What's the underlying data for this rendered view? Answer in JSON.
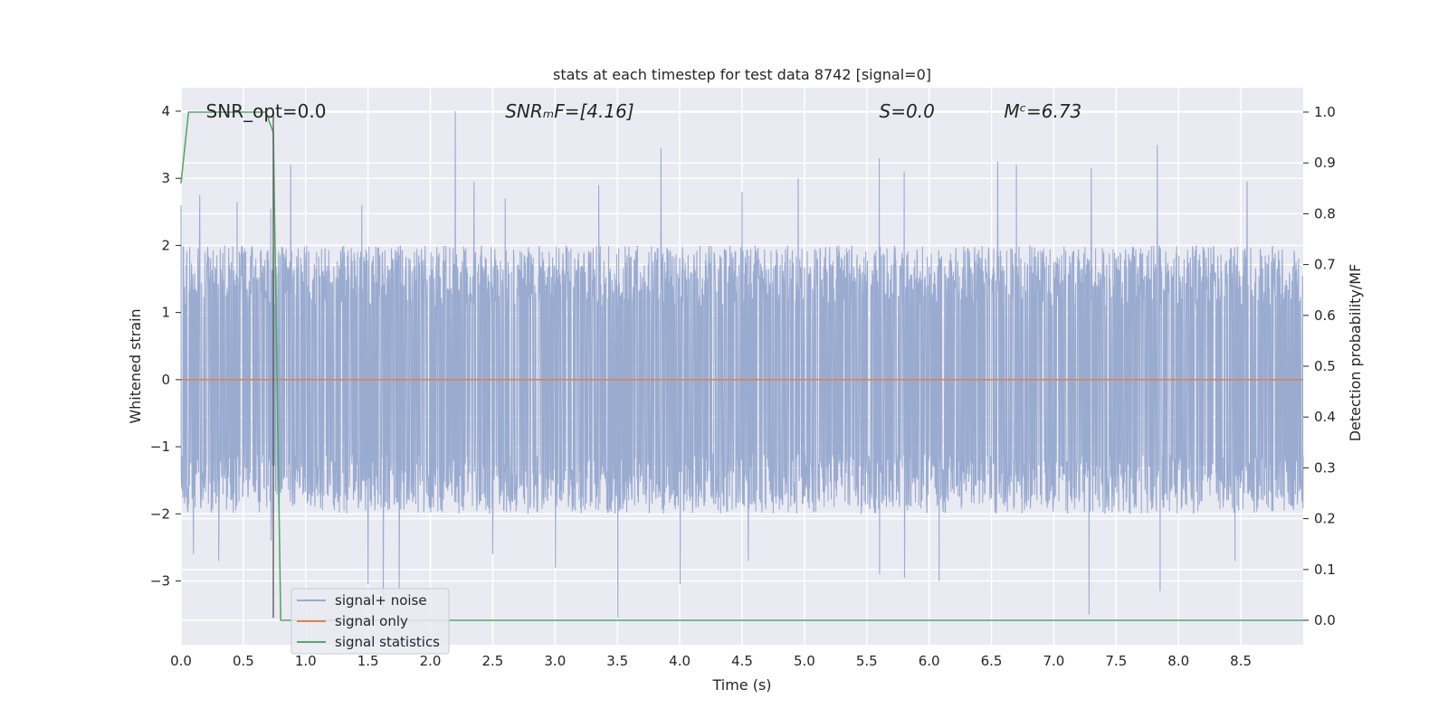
{
  "chart_data": {
    "type": "line",
    "title": "stats at each timestep for test data 8742 [signal=0]",
    "xlabel": "Time (s)",
    "ylabel": "Whitened strain",
    "ylabel_right": "Detection probability/MF",
    "xlim": [
      0.0,
      9.0
    ],
    "ylim_left": [
      -3.95,
      4.35
    ],
    "ylim_right": [
      -0.048,
      1.048
    ],
    "x_ticks": [
      "0.0",
      "0.5",
      "1.0",
      "1.5",
      "2.0",
      "2.5",
      "3.0",
      "3.5",
      "4.0",
      "4.5",
      "5.0",
      "5.5",
      "6.0",
      "6.5",
      "7.0",
      "7.5",
      "8.0",
      "8.5"
    ],
    "y_ticks_left": [
      "−3",
      "−2",
      "−1",
      "0",
      "1",
      "2",
      "3",
      "4"
    ],
    "y_ticks_right": [
      "0.0",
      "0.1",
      "0.2",
      "0.3",
      "0.4",
      "0.5",
      "0.6",
      "0.7",
      "0.8",
      "0.9",
      "1.0"
    ],
    "grid": true,
    "legend_position": "lower-left",
    "annotations": [
      {
        "text": "SNR_opt=0.0",
        "x": 0.2,
        "y": 4.0
      },
      {
        "text": "SNRₘF=[4.16]",
        "x": 2.6,
        "y": 4.0
      },
      {
        "text": "S=0.0",
        "x": 5.6,
        "y": 4.0
      },
      {
        "text": "Mᶜ=6.73",
        "x": 6.6,
        "y": 4.0
      }
    ],
    "series": [
      {
        "name": "signal+ noise",
        "color": "#9aabd0",
        "axis": "left",
        "x_range": [
          0.0,
          9.0
        ],
        "typical_range": [
          -2.0,
          2.0
        ],
        "peaks": [
          {
            "x": 0.0,
            "y": 2.6
          },
          {
            "x": 0.15,
            "y": 2.75
          },
          {
            "x": 0.45,
            "y": 2.65
          },
          {
            "x": 0.72,
            "y": 2.55
          },
          {
            "x": 0.88,
            "y": 3.2
          },
          {
            "x": 1.45,
            "y": 2.6
          },
          {
            "x": 2.2,
            "y": 4.0
          },
          {
            "x": 2.35,
            "y": 2.95
          },
          {
            "x": 2.6,
            "y": 2.7
          },
          {
            "x": 3.35,
            "y": 2.9
          },
          {
            "x": 3.85,
            "y": 3.45
          },
          {
            "x": 4.5,
            "y": 2.8
          },
          {
            "x": 4.95,
            "y": 3.0
          },
          {
            "x": 5.6,
            "y": 3.3
          },
          {
            "x": 5.8,
            "y": 3.1
          },
          {
            "x": 6.55,
            "y": 3.25
          },
          {
            "x": 6.7,
            "y": 3.2
          },
          {
            "x": 7.3,
            "y": 3.15
          },
          {
            "x": 7.83,
            "y": 3.5
          },
          {
            "x": 8.55,
            "y": 2.95
          }
        ],
        "troughs": [
          {
            "x": 0.1,
            "y": -2.6
          },
          {
            "x": 0.3,
            "y": -2.7
          },
          {
            "x": 0.72,
            "y": -2.4
          },
          {
            "x": 1.5,
            "y": -3.05
          },
          {
            "x": 1.62,
            "y": -3.4
          },
          {
            "x": 1.75,
            "y": -3.15
          },
          {
            "x": 2.5,
            "y": -2.6
          },
          {
            "x": 3.0,
            "y": -2.8
          },
          {
            "x": 3.5,
            "y": -3.55
          },
          {
            "x": 4.0,
            "y": -3.05
          },
          {
            "x": 4.55,
            "y": -2.7
          },
          {
            "x": 5.6,
            "y": -2.9
          },
          {
            "x": 5.8,
            "y": -2.95
          },
          {
            "x": 6.08,
            "y": -3.0
          },
          {
            "x": 7.28,
            "y": -3.5
          },
          {
            "x": 7.85,
            "y": -3.15
          },
          {
            "x": 8.45,
            "y": -2.7
          }
        ]
      },
      {
        "name": "signal only",
        "color": "#dd8452",
        "axis": "left",
        "x": [
          0.0,
          9.0
        ],
        "y": [
          0.0,
          0.0
        ]
      },
      {
        "name": "signal statistics",
        "color": "#55a868",
        "axis": "right",
        "x": [
          0.0,
          0.06,
          0.1,
          0.3,
          0.5,
          0.68,
          0.74,
          0.8,
          1.5,
          3.0,
          6.0,
          9.0
        ],
        "y": [
          0.86,
          1.0,
          1.0,
          1.0,
          1.0,
          1.0,
          0.96,
          0.0,
          0.0,
          0.0,
          0.0,
          0.0
        ]
      },
      {
        "name": "",
        "color": "#555555",
        "axis": "left",
        "x": [
          0.74,
          0.74
        ],
        "y": [
          -3.55,
          4.0
        ]
      }
    ]
  }
}
